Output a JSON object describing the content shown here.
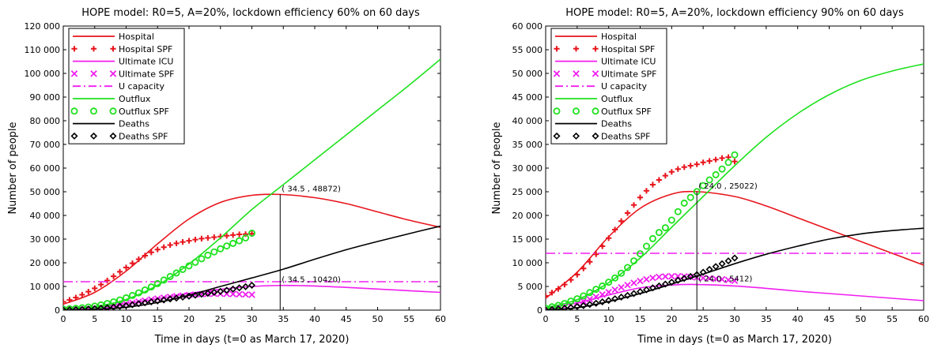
{
  "chart_data": [
    {
      "type": "line",
      "title": "HOPE model: R0=5, A=20%, lockdown efficiency 60% on 60 days",
      "xlabel": "Time in days (t=0 as March 17, 2020)",
      "ylabel": "Number of people",
      "xlim": [
        0,
        60
      ],
      "ylim": [
        0,
        120000
      ],
      "x_ticks": [
        0,
        5,
        10,
        15,
        20,
        25,
        30,
        35,
        40,
        45,
        50,
        55,
        60
      ],
      "y_ticks": [
        0,
        10000,
        20000,
        30000,
        40000,
        50000,
        60000,
        70000,
        80000,
        90000,
        100000,
        110000,
        120000
      ],
      "y_tick_labels": [
        "0",
        "10 000",
        "20 000",
        "30 000",
        "40 000",
        "50 000",
        "60 000",
        "70 000",
        "80 000",
        "90 000",
        "100 000",
        "110 000",
        "120 000"
      ],
      "legend_position": "top-left",
      "series": [
        {
          "name": "Hospital",
          "style": "line",
          "color": "#e8141c",
          "x": [
            0,
            5,
            10,
            15,
            20,
            25,
            30,
            34.5,
            40,
            45,
            50,
            55,
            60
          ],
          "y": [
            2500,
            7500,
            16500,
            28000,
            38500,
            45500,
            48500,
            48872,
            47500,
            45000,
            41500,
            38000,
            35000
          ]
        },
        {
          "name": "Hospital SPF",
          "style": "plus",
          "color": "#e8141c",
          "x": [
            0,
            1,
            2,
            3,
            4,
            5,
            6,
            7,
            8,
            9,
            10,
            11,
            12,
            13,
            14,
            15,
            16,
            17,
            18,
            19,
            20,
            21,
            22,
            23,
            24,
            25,
            26,
            27,
            28,
            29,
            30
          ],
          "y": [
            3500,
            4300,
            5300,
            6500,
            7800,
            9200,
            10800,
            12500,
            14300,
            16200,
            18000,
            19800,
            21500,
            23000,
            24400,
            25600,
            26600,
            27500,
            28200,
            28800,
            29300,
            29800,
            30200,
            30500,
            30800,
            31100,
            31400,
            31700,
            32000,
            32100,
            32300
          ]
        },
        {
          "name": "Ultimate ICU",
          "style": "line",
          "color": "#f01ef0",
          "x": [
            0,
            5,
            10,
            15,
            20,
            25,
            30,
            34.5,
            40,
            45,
            50,
            55,
            60
          ],
          "y": [
            500,
            1200,
            2800,
            4800,
            7000,
            8800,
            10000,
            10420,
            10200,
            9600,
            8900,
            8200,
            7500
          ]
        },
        {
          "name": "Ultimate SPF",
          "style": "cross",
          "color": "#f01ef0",
          "x": [
            0,
            1,
            2,
            3,
            4,
            5,
            6,
            7,
            8,
            9,
            10,
            11,
            12,
            13,
            14,
            15,
            16,
            17,
            18,
            19,
            20,
            21,
            22,
            23,
            24,
            25,
            26,
            27,
            28,
            29,
            30
          ],
          "y": [
            200,
            300,
            400,
            550,
            700,
            900,
            1150,
            1450,
            1800,
            2200,
            2650,
            3100,
            3550,
            4000,
            4450,
            4850,
            5250,
            5600,
            5900,
            6150,
            6400,
            6600,
            6750,
            6850,
            6900,
            6900,
            6850,
            6800,
            6700,
            6600,
            6500
          ]
        },
        {
          "name": "U capacity",
          "style": "dashdot",
          "color": "#f01ef0",
          "x": [
            0,
            60
          ],
          "y": [
            12000,
            12000
          ]
        },
        {
          "name": "Outflux",
          "style": "line",
          "color": "#1ee11e",
          "x": [
            0,
            5,
            10,
            15,
            20,
            25,
            30,
            35,
            40,
            45,
            50,
            55,
            60
          ],
          "y": [
            500,
            1500,
            4500,
            10500,
            19500,
            30500,
            42500,
            53000,
            63500,
            74000,
            84500,
            95000,
            106000
          ]
        },
        {
          "name": "Outflux SPF",
          "style": "circle",
          "color": "#1ee11e",
          "x": [
            0,
            1,
            2,
            3,
            4,
            5,
            6,
            7,
            8,
            9,
            10,
            11,
            12,
            13,
            14,
            15,
            16,
            17,
            18,
            19,
            20,
            21,
            22,
            23,
            24,
            25,
            26,
            27,
            28,
            29,
            30
          ],
          "y": [
            400,
            550,
            750,
            1000,
            1300,
            1700,
            2200,
            2800,
            3500,
            4300,
            5200,
            6200,
            7300,
            8500,
            9800,
            11200,
            12700,
            14200,
            15700,
            17200,
            18700,
            20200,
            21700,
            23200,
            24600,
            25900,
            27100,
            28200,
            29300,
            30500,
            32500
          ]
        },
        {
          "name": "Deaths",
          "style": "line",
          "color": "#000000",
          "x": [
            0,
            5,
            10,
            15,
            20,
            25,
            30,
            35,
            40,
            45,
            50,
            55,
            60
          ],
          "y": [
            0,
            300,
            1200,
            3200,
            6300,
            10000,
            13600,
            17300,
            21500,
            25500,
            29000,
            32300,
            35500
          ]
        },
        {
          "name": "Deaths SPF",
          "style": "diamond",
          "color": "#000000",
          "x": [
            0,
            1,
            2,
            3,
            4,
            5,
            6,
            7,
            8,
            9,
            10,
            11,
            12,
            13,
            14,
            15,
            16,
            17,
            18,
            19,
            20,
            21,
            22,
            23,
            24,
            25,
            26,
            27,
            28,
            29,
            30
          ],
          "y": [
            0,
            100,
            200,
            300,
            450,
            600,
            800,
            1000,
            1300,
            1600,
            1900,
            2300,
            2700,
            3100,
            3500,
            3900,
            4300,
            4700,
            5100,
            5500,
            5900,
            6300,
            6700,
            7100,
            7500,
            7900,
            8400,
            8900,
            9400,
            9900,
            10500
          ]
        }
      ],
      "vline": {
        "x": 34.5,
        "y_from": 0,
        "y_to": 48872
      },
      "annotations": [
        {
          "text": "( 34.5 , 48872)",
          "x": 34.5,
          "y": 48872
        },
        {
          "text": "( 34.5 , 10420)",
          "x": 34.5,
          "y": 10420
        }
      ]
    },
    {
      "type": "line",
      "title": "HOPE model: R0=5, A=20%, lockdown efficiency 90% on 60 days",
      "xlabel": "Time in days (t=0 as March 17, 2020)",
      "ylabel": "Number of people",
      "xlim": [
        0,
        60
      ],
      "ylim": [
        0,
        60000
      ],
      "x_ticks": [
        0,
        5,
        10,
        15,
        20,
        25,
        30,
        35,
        40,
        45,
        50,
        55,
        60
      ],
      "y_ticks": [
        0,
        5000,
        10000,
        15000,
        20000,
        25000,
        30000,
        35000,
        40000,
        45000,
        50000,
        55000,
        60000
      ],
      "y_tick_labels": [
        "0",
        "5 000",
        "10 000",
        "15 000",
        "20 000",
        "25 000",
        "30 000",
        "35 000",
        "40 000",
        "45 000",
        "50 000",
        "55 000",
        "60 000"
      ],
      "legend_position": "top-left",
      "series": [
        {
          "name": "Hospital",
          "style": "line",
          "color": "#e8141c",
          "x": [
            0,
            5,
            10,
            15,
            20,
            24,
            30,
            35,
            40,
            45,
            50,
            55,
            60
          ],
          "y": [
            2500,
            8000,
            15500,
            21500,
            24500,
            25022,
            24000,
            22000,
            19500,
            17000,
            14500,
            12000,
            9500
          ]
        },
        {
          "name": "Hospital SPF",
          "style": "plus",
          "color": "#e8141c",
          "x": [
            0,
            1,
            2,
            3,
            4,
            5,
            6,
            7,
            8,
            9,
            10,
            11,
            12,
            13,
            14,
            15,
            16,
            17,
            18,
            19,
            20,
            21,
            22,
            23,
            24,
            25,
            26,
            27,
            28,
            29,
            30
          ],
          "y": [
            3000,
            3700,
            4500,
            5400,
            6400,
            7500,
            8800,
            10200,
            11800,
            13500,
            15200,
            17000,
            18800,
            20500,
            22200,
            23800,
            25200,
            26500,
            27500,
            28400,
            29200,
            29800,
            30200,
            30500,
            30800,
            31200,
            31500,
            31800,
            32100,
            32300,
            31400
          ]
        },
        {
          "name": "Ultimate ICU",
          "style": "line",
          "color": "#f01ef0",
          "x": [
            0,
            5,
            10,
            15,
            20,
            24,
            30,
            35,
            40,
            45,
            50,
            55,
            60
          ],
          "y": [
            500,
            1500,
            3200,
            4700,
            5300,
            5412,
            5100,
            4600,
            4000,
            3500,
            3000,
            2500,
            2000
          ]
        },
        {
          "name": "Ultimate SPF",
          "style": "cross",
          "color": "#f01ef0",
          "x": [
            0,
            1,
            2,
            3,
            4,
            5,
            6,
            7,
            8,
            9,
            10,
            11,
            12,
            13,
            14,
            15,
            16,
            17,
            18,
            19,
            20,
            21,
            22,
            23,
            24,
            25,
            26,
            27,
            28,
            29,
            30
          ],
          "y": [
            200,
            350,
            550,
            800,
            1100,
            1450,
            1850,
            2300,
            2800,
            3300,
            3800,
            4300,
            4800,
            5300,
            5750,
            6150,
            6500,
            6800,
            7000,
            7100,
            7150,
            7150,
            7100,
            7000,
            6900,
            6800,
            6700,
            6600,
            6500,
            6350,
            6200
          ]
        },
        {
          "name": "U capacity",
          "style": "dashdot",
          "color": "#f01ef0",
          "x": [
            0,
            60
          ],
          "y": [
            12000,
            12000
          ]
        },
        {
          "name": "Outflux",
          "style": "line",
          "color": "#1ee11e",
          "x": [
            0,
            5,
            10,
            15,
            20,
            25,
            30,
            35,
            40,
            45,
            50,
            55,
            60
          ],
          "y": [
            500,
            2200,
            5800,
            11000,
            17500,
            24000,
            30500,
            36500,
            41500,
            45500,
            48500,
            50500,
            52000
          ]
        },
        {
          "name": "Outflux SPF",
          "style": "circle",
          "color": "#1ee11e",
          "x": [
            0,
            1,
            2,
            3,
            4,
            5,
            6,
            7,
            8,
            9,
            10,
            11,
            12,
            13,
            14,
            15,
            16,
            17,
            18,
            19,
            20,
            21,
            22,
            23,
            24,
            25,
            26,
            27,
            28,
            29,
            30
          ],
          "y": [
            400,
            700,
            1000,
            1400,
            1900,
            2400,
            3000,
            3700,
            4400,
            5100,
            5900,
            6800,
            7800,
            9000,
            10400,
            11900,
            13500,
            15100,
            16400,
            17400,
            19000,
            20800,
            22600,
            23800,
            25022,
            26300,
            27500,
            28600,
            29800,
            31200,
            32800
          ]
        },
        {
          "name": "Deaths",
          "style": "line",
          "color": "#000000",
          "x": [
            0,
            5,
            10,
            15,
            20,
            25,
            30,
            35,
            40,
            45,
            50,
            55,
            60
          ],
          "y": [
            0,
            500,
            1800,
            3500,
            5500,
            7600,
            9800,
            11800,
            13500,
            15000,
            16100,
            16800,
            17300
          ]
        },
        {
          "name": "Deaths SPF",
          "style": "diamond",
          "color": "#000000",
          "x": [
            0,
            1,
            2,
            3,
            4,
            5,
            6,
            7,
            8,
            9,
            10,
            11,
            12,
            13,
            14,
            15,
            16,
            17,
            18,
            19,
            20,
            21,
            22,
            23,
            24,
            25,
            26,
            27,
            28,
            29,
            30
          ],
          "y": [
            0,
            100,
            250,
            400,
            550,
            750,
            950,
            1200,
            1450,
            1750,
            2050,
            2400,
            2750,
            3100,
            3500,
            3900,
            4300,
            4700,
            5100,
            5500,
            5900,
            6300,
            6700,
            7100,
            7500,
            8000,
            8600,
            9200,
            9800,
            10400,
            11000
          ]
        }
      ],
      "vline": {
        "x": 24,
        "y_from": 0,
        "y_to": 25022
      },
      "annotations": [
        {
          "text": "( 24.0 , 25022)",
          "x": 24.0,
          "y": 25022
        },
        {
          "text": "( 24.0 , 5412)",
          "x": 24.0,
          "y": 5412
        }
      ]
    }
  ]
}
